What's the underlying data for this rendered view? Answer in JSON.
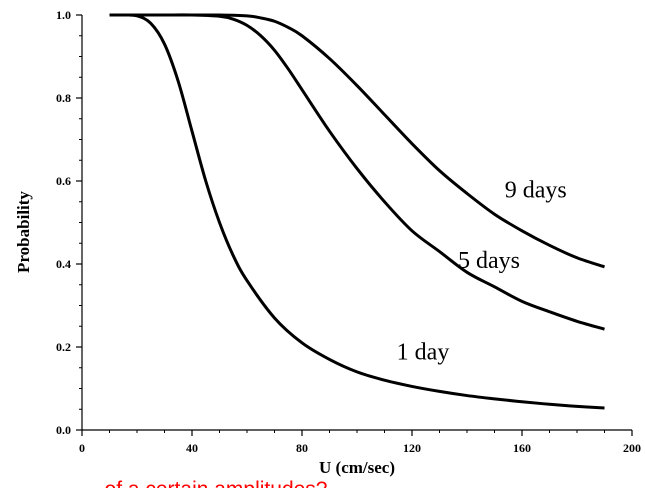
{
  "chart_data": {
    "type": "line",
    "title": "",
    "xlabel": "U (cm/sec)",
    "ylabel": "Probability",
    "xlim": [
      0,
      200
    ],
    "ylim": [
      0,
      1.0
    ],
    "xticks": [
      "0",
      "40",
      "80",
      "120",
      "160",
      "200"
    ],
    "yticks": [
      "0.0",
      "0.2",
      "0.4",
      "0.6",
      "0.8",
      "1.0"
    ],
    "grid": false,
    "series": [
      {
        "name": "1 day",
        "x": [
          10,
          15,
          20,
          25,
          30,
          35,
          40,
          45,
          50,
          55,
          60,
          70,
          80,
          90,
          100,
          110,
          120,
          130,
          140,
          150,
          160,
          170,
          180,
          190
        ],
        "y": [
          1.0,
          1.0,
          0.998,
          0.98,
          0.93,
          0.84,
          0.72,
          0.6,
          0.5,
          0.42,
          0.36,
          0.27,
          0.21,
          0.17,
          0.14,
          0.12,
          0.105,
          0.093,
          0.083,
          0.075,
          0.068,
          0.062,
          0.057,
          0.053
        ]
      },
      {
        "name": "5 days",
        "x": [
          10,
          20,
          30,
          40,
          50,
          55,
          60,
          65,
          70,
          75,
          80,
          90,
          100,
          110,
          120,
          130,
          140,
          150,
          160,
          170,
          180,
          190
        ],
        "y": [
          1.0,
          1.0,
          1.0,
          1.0,
          0.997,
          0.99,
          0.975,
          0.95,
          0.915,
          0.87,
          0.82,
          0.72,
          0.63,
          0.55,
          0.48,
          0.43,
          0.38,
          0.345,
          0.31,
          0.285,
          0.262,
          0.243
        ]
      },
      {
        "name": "9 days",
        "x": [
          10,
          20,
          30,
          40,
          50,
          60,
          65,
          70,
          75,
          80,
          90,
          100,
          110,
          120,
          130,
          140,
          150,
          160,
          170,
          180,
          190
        ],
        "y": [
          1.0,
          1.0,
          1.0,
          1.0,
          1.0,
          0.998,
          0.993,
          0.985,
          0.97,
          0.95,
          0.895,
          0.83,
          0.76,
          0.69,
          0.625,
          0.57,
          0.52,
          0.48,
          0.445,
          0.415,
          0.393
        ]
      }
    ],
    "annotations": [
      {
        "text": "1 day",
        "x": 124,
        "y": 0.17
      },
      {
        "text": "5 days",
        "x": 148,
        "y": 0.39
      },
      {
        "text": "9 days",
        "x": 165,
        "y": 0.56
      }
    ],
    "caption": "of a certain amplitudes?"
  }
}
